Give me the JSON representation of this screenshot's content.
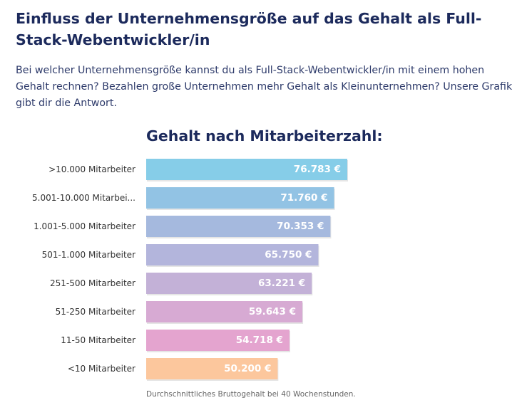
{
  "heading": "Einfluss der Unternehmensgröße auf das Gehalt als Full-Stack-Webentwickler/in",
  "intro": "Bei welcher Unternehmensgröße kannst du als Full-Stack-Webentwickler/in mit einem hohen Gehalt rechnen? Bezahlen große Unternehmen mehr Gehalt als Kleinunternehmen? Unsere Grafik gibt dir die Antwort.",
  "chart_data": {
    "type": "bar",
    "orientation": "horizontal",
    "title": "Gehalt nach Mitarbeiterzahl:",
    "categories": [
      ">10.000 Mitarbeiter",
      "5.001-10.000 Mitarbei...",
      "1.001-5.000 Mitarbeiter",
      "501-1.000 Mitarbeiter",
      "251-500 Mitarbeiter",
      "51-250 Mitarbeiter",
      "11-50 Mitarbeiter",
      "<10 Mitarbeiter"
    ],
    "values": [
      76783,
      71760,
      70353,
      65750,
      63221,
      59643,
      54718,
      50200
    ],
    "value_labels": [
      "76.783 €",
      "71.760 €",
      "70.353 €",
      "65.750 €",
      "63.221 €",
      "59.643 €",
      "54.718 €",
      "50.200 €"
    ],
    "colors": [
      "#86cde8",
      "#92c3e4",
      "#a5b9de",
      "#b3b5dc",
      "#c3b1d7",
      "#d7aad3",
      "#e4a4cf",
      "#fcc79d"
    ],
    "xlabel": "",
    "ylabel": "",
    "note": "Durchschnittliches Bruttogehalt bei 40 Wochenstunden."
  }
}
